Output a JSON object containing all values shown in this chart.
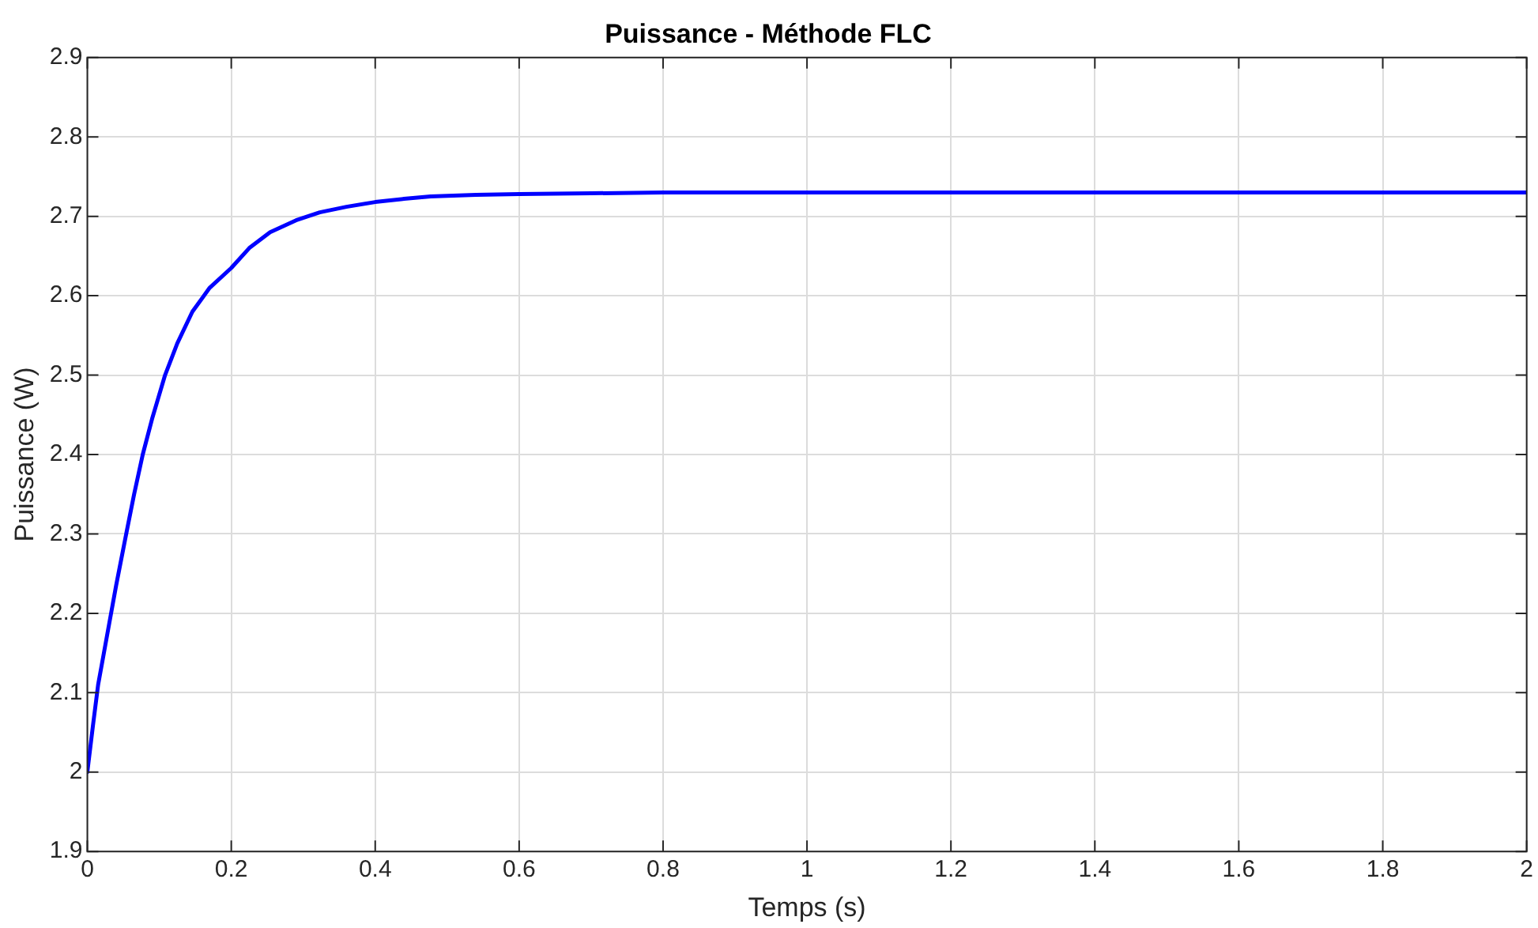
{
  "chart_data": {
    "type": "line",
    "title": "Puissance - Méthode FLC",
    "xlabel": "Temps (s)",
    "ylabel": "Puissance (W)",
    "x": [
      0,
      0.008,
      0.015,
      0.023,
      0.031,
      0.04,
      0.054,
      0.065,
      0.077,
      0.09,
      0.108,
      0.125,
      0.146,
      0.17,
      0.2,
      0.225,
      0.254,
      0.29,
      0.323,
      0.36,
      0.4,
      0.44,
      0.477,
      0.54,
      0.6,
      0.7,
      0.8,
      1,
      1.2,
      1.4,
      1.6,
      1.8,
      2
    ],
    "series": [
      {
        "color": "#0000ff",
        "values": [
          2.0,
          2.06,
          2.11,
          2.15,
          2.19,
          2.235,
          2.3,
          2.35,
          2.4,
          2.445,
          2.5,
          2.54,
          2.58,
          2.61,
          2.635,
          2.66,
          2.68,
          2.695,
          2.705,
          2.712,
          2.718,
          2.722,
          2.725,
          2.727,
          2.728,
          2.729,
          2.73,
          2.73,
          2.73,
          2.73,
          2.73,
          2.73,
          2.73
        ]
      }
    ],
    "xlim": [
      0,
      2
    ],
    "xticks": [
      0,
      0.2,
      0.4,
      0.6,
      0.8,
      1,
      1.2,
      1.4,
      1.6,
      1.8,
      2
    ],
    "ylim": [
      1.9,
      2.9
    ],
    "yticks": [
      1.9,
      2,
      2.1,
      2.2,
      2.3,
      2.4,
      2.5,
      2.6,
      2.7,
      2.8,
      2.9
    ],
    "grid": true,
    "marker": "none",
    "line_style": "solid"
  }
}
